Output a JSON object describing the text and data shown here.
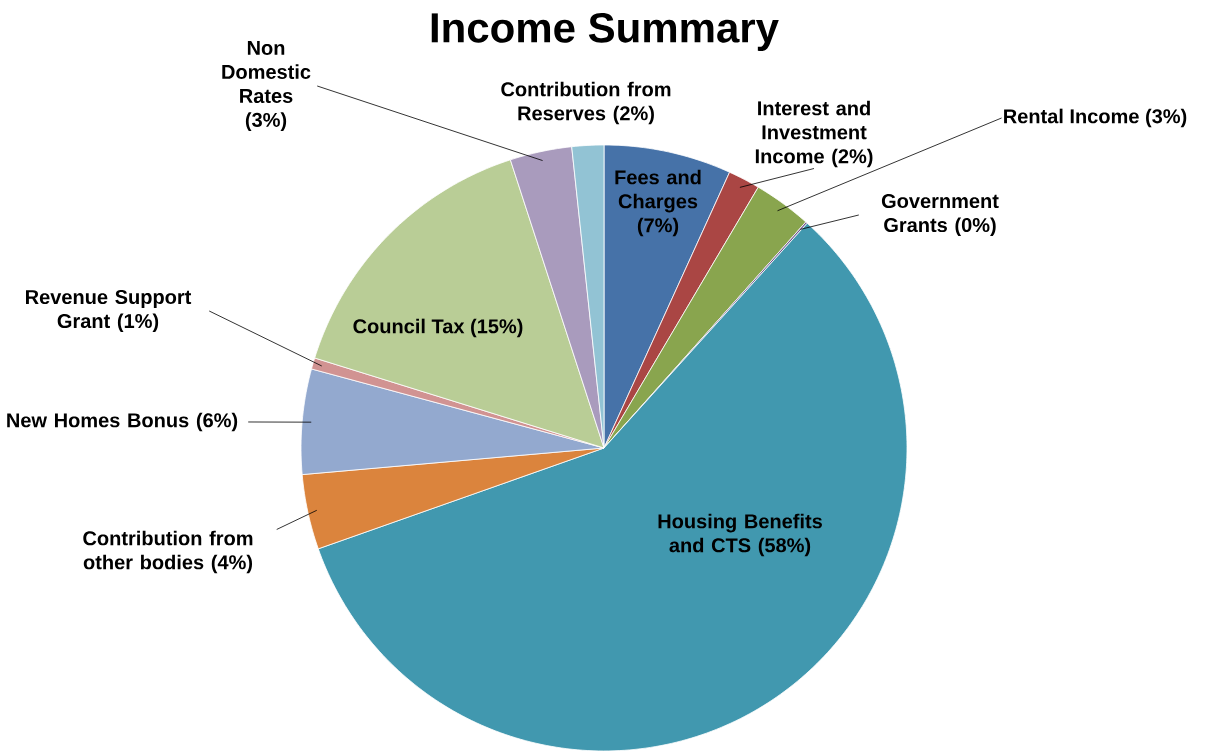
{
  "chart_data": {
    "type": "pie",
    "title": "Income Summary",
    "categories": [
      "Fees and Charges",
      "Interest and Investment Income",
      "Rental Income",
      "Government Grants",
      "Housing Benefits and CTS",
      "Contribution from other bodies",
      "New Homes Bonus",
      "Revenue Support Grant",
      "Council Tax",
      "Non Domestic Rates",
      "Contribution from Reserves"
    ],
    "values": [
      6.8,
      1.7,
      3.1,
      0.1,
      57.9,
      4.0,
      5.6,
      0.6,
      15.2,
      3.3,
      1.7
    ],
    "value_labels": [
      "(7%)",
      "(2%)",
      "(3%)",
      "(0%)",
      "(58%)",
      "(4%)",
      "(6%)",
      "(1%)",
      "(15%)",
      "(3%)",
      "(2%)"
    ],
    "colors": [
      "#4672a8",
      "#aa4644",
      "#89a54e",
      "#71588f",
      "#4198af",
      "#db843d",
      "#93a9cf",
      "#d19392",
      "#b9cd96",
      "#a99bbd",
      "#92c3d4"
    ]
  }
}
